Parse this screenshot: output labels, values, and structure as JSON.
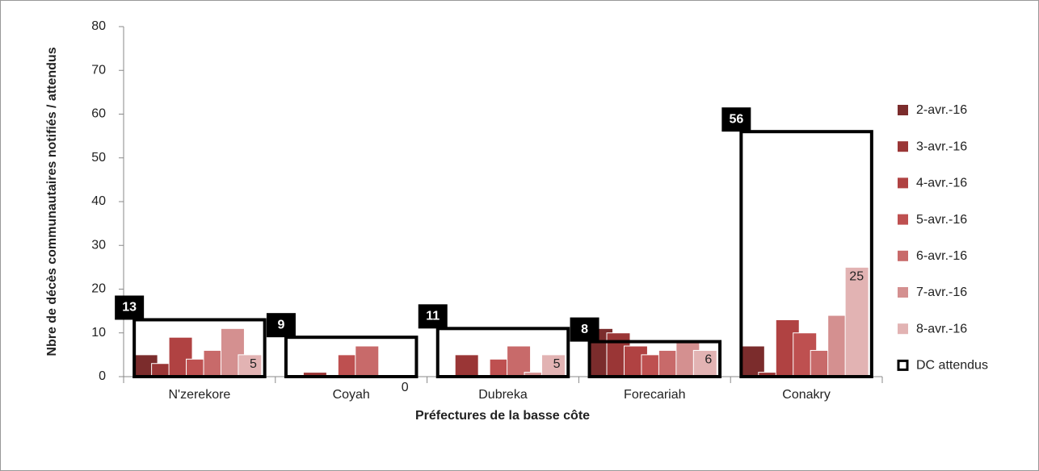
{
  "chart_data": {
    "type": "bar",
    "x_label": "Préfectures de la basse côte",
    "y_label": "Nbre de décès communautaires notifiés / attendus",
    "categories": [
      "N'zerekore",
      "Coyah",
      "Dubreka",
      "Forecariah",
      "Conakry"
    ],
    "series": [
      {
        "name": "2-avr.-16",
        "color": "#7b2c2c",
        "values": [
          5,
          0,
          0,
          11,
          7
        ]
      },
      {
        "name": "3-avr.-16",
        "color": "#9a3636",
        "values": [
          3,
          1,
          5,
          10,
          1
        ]
      },
      {
        "name": "4-avr.-16",
        "color": "#b04242",
        "values": [
          9,
          0,
          0,
          7,
          13
        ]
      },
      {
        "name": "5-avr.-16",
        "color": "#be5050",
        "values": [
          4,
          5,
          4,
          5,
          10
        ]
      },
      {
        "name": "6-avr.-16",
        "color": "#c86a6a",
        "values": [
          6,
          7,
          7,
          6,
          6
        ]
      },
      {
        "name": "7-avr.-16",
        "color": "#d49090",
        "values": [
          11,
          0,
          1,
          8,
          14
        ]
      },
      {
        "name": "8-avr.-16",
        "color": "#e2b3b3",
        "values": [
          5,
          0,
          5,
          6,
          25
        ],
        "labels": true
      },
      {
        "name": "DC attendus",
        "color": "#000000",
        "values": [
          13,
          9,
          11,
          8,
          56
        ],
        "style": "outline",
        "labels": true
      }
    ],
    "ylim": [
      0,
      80
    ],
    "yticks": [
      0,
      10,
      20,
      30,
      40,
      50,
      60,
      70,
      80
    ],
    "legend": "right"
  }
}
